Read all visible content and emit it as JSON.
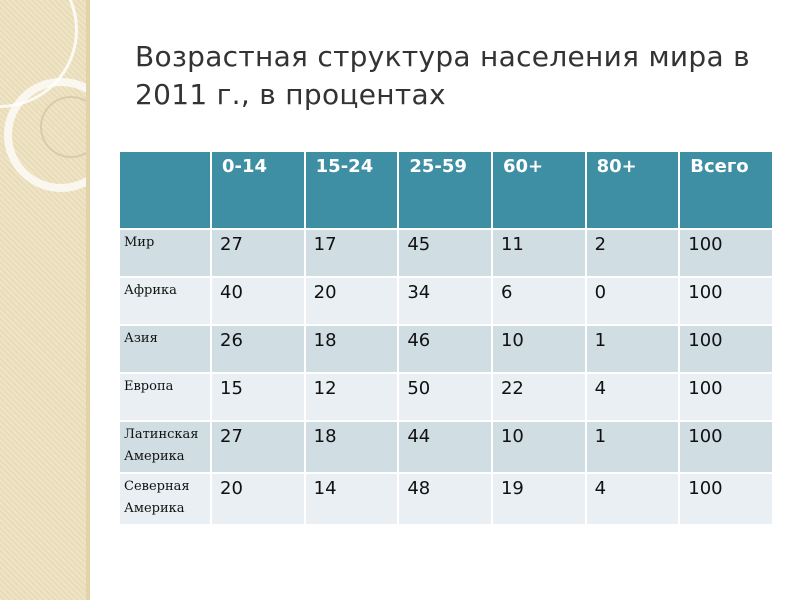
{
  "title": "Возрастная структура населения мира в 2011 г., в процентах",
  "table": {
    "headers": [
      "",
      "0-14",
      "15-24",
      "25-59",
      "60+",
      "80+",
      "Всего"
    ],
    "rows": [
      {
        "label": "Мир",
        "values": [
          "27",
          "17",
          "45",
          "11",
          "2",
          "100"
        ]
      },
      {
        "label": "Африка",
        "values": [
          "40",
          "20",
          "34",
          "6",
          "0",
          "100"
        ]
      },
      {
        "label": "Азия",
        "values": [
          "26",
          "18",
          "46",
          "10",
          "1",
          "100"
        ]
      },
      {
        "label": "Европа",
        "values": [
          "15",
          "12",
          "50",
          "22",
          "4",
          "100"
        ]
      },
      {
        "label": "Латинская Америка",
        "values": [
          "27",
          "18",
          "44",
          "10",
          "1",
          "100"
        ]
      },
      {
        "label": "Северная Америка",
        "values": [
          "20",
          "14",
          "48",
          "19",
          "4",
          "100"
        ]
      }
    ]
  },
  "colors": {
    "header": "#3e8fa3",
    "row_dark": "#d0dde3",
    "row_light": "#e9eff2",
    "sidebar": "#efe4c6"
  }
}
